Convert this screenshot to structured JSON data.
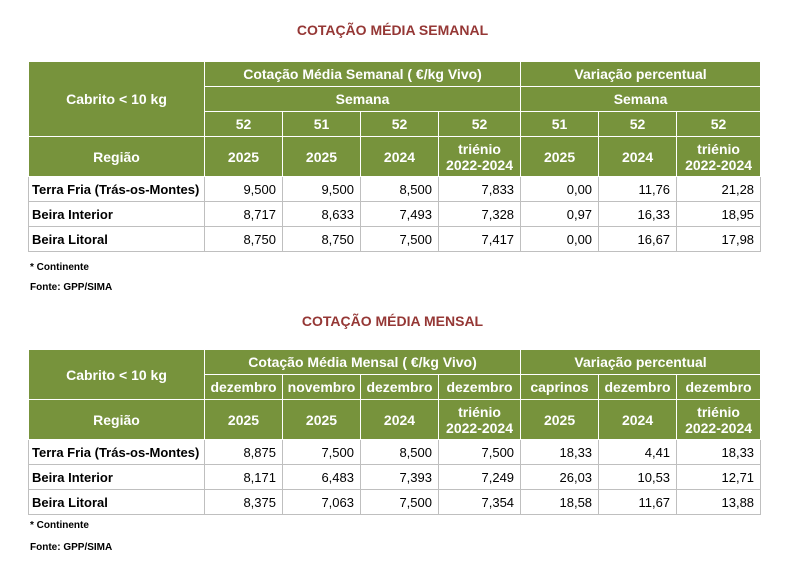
{
  "tables": [
    {
      "title": "COTAÇÃO MÉDIA SEMANAL",
      "corner": "Cabrito < 10 kg",
      "group1": "Cotação Média Semanal ( €/kg Vivo)",
      "group2": "Variação percentual",
      "sub": [
        "Semana",
        "Semana"
      ],
      "periods": [
        "52",
        "51",
        "52",
        "52",
        "51",
        "52",
        "52"
      ],
      "region_label": "Região",
      "years": [
        "2025",
        "2025",
        "2024",
        "triénio 2022-2024",
        "2025",
        "2024",
        "triénio 2022-2024"
      ],
      "rows": [
        [
          "Terra Fria (Trás-os-Montes)",
          "9,500",
          "9,500",
          "8,500",
          "7,833",
          "0,00",
          "11,76",
          "21,28"
        ],
        [
          "Beira Interior",
          "8,717",
          "8,633",
          "7,493",
          "7,328",
          "0,97",
          "16,33",
          "18,95"
        ],
        [
          "Beira Litoral",
          "8,750",
          "8,750",
          "7,500",
          "7,417",
          "0,00",
          "16,67",
          "17,98"
        ]
      ],
      "notes": [
        "* Continente",
        "Fonte: GPP/SIMA"
      ]
    },
    {
      "title": "COTAÇÃO MÉDIA MENSAL",
      "corner": "Cabrito < 10 kg",
      "group1": "Cotação Média Mensal ( €/kg Vivo)",
      "group2": "Variação percentual",
      "periods": [
        "dezembro",
        "novembro",
        "dezembro",
        "dezembro",
        "caprinos",
        "dezembro",
        "dezembro"
      ],
      "region_label": "Região",
      "years": [
        "2025",
        "2025",
        "2024",
        "triénio 2022-2024",
        "2025",
        "2024",
        "triénio 2022-2024"
      ],
      "rows": [
        [
          "Terra Fria (Trás-os-Montes)",
          "8,875",
          "7,500",
          "8,500",
          "7,500",
          "18,33",
          "4,41",
          "18,33"
        ],
        [
          "Beira Interior",
          "8,171",
          "6,483",
          "7,393",
          "7,249",
          "26,03",
          "10,53",
          "12,71"
        ],
        [
          "Beira Litoral",
          "8,375",
          "7,063",
          "7,500",
          "7,354",
          "18,58",
          "11,67",
          "13,88"
        ]
      ],
      "notes": [
        "* Continente",
        "Fonte: GPP/SIMA"
      ]
    }
  ]
}
